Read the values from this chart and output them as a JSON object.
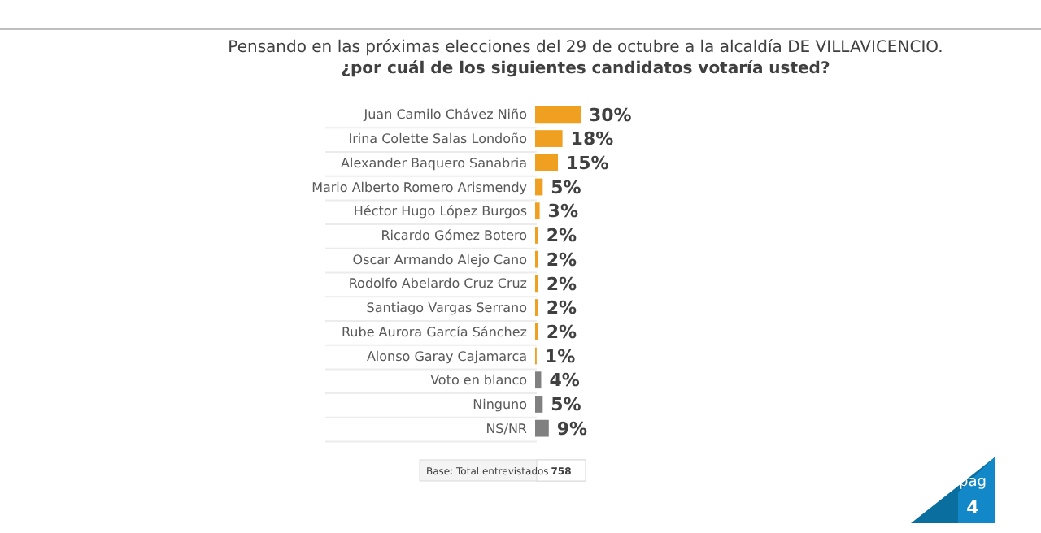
{
  "chart_data": {
    "type": "bar",
    "orientation": "horizontal",
    "title": "Pensando en las próximas elecciones del 29 de octubre a la alcaldía  DE VILLAVICENCIO.",
    "subtitle": "¿por cuál de los siguientes candidatos votaría usted?",
    "categories": [
      "Juan Camilo Chávez Niño",
      "Irina Colette Salas Londoño",
      "Alexander Baquero Sanabria",
      "Mario Alberto Romero Arismendy",
      "Héctor Hugo López Burgos",
      "Ricardo Gómez Botero",
      "Oscar Armando Alejo Cano",
      "Rodolfo Abelardo Cruz Cruz",
      "Santiago Vargas Serrano",
      "Rube Aurora García Sánchez",
      "Alonso Garay Cajamarca",
      "Voto en blanco",
      "Ninguno",
      "NS/NR"
    ],
    "values": [
      30,
      18,
      15,
      5,
      3,
      2,
      2,
      2,
      2,
      2,
      1,
      4,
      5,
      9
    ],
    "colors": [
      "#f0a020",
      "#f0a020",
      "#f0a020",
      "#f0a020",
      "#f0a020",
      "#f0a020",
      "#f0a020",
      "#f0a020",
      "#f0a020",
      "#f0a020",
      "#f0a020",
      "#808080",
      "#808080",
      "#808080"
    ],
    "value_labels": [
      "30%",
      "18%",
      "15%",
      "5%",
      "3%",
      "2%",
      "2%",
      "2%",
      "2%",
      "2%",
      "1%",
      "4%",
      "5%",
      "9%"
    ],
    "annotations": [
      "Base: Total entrevistados",
      "758",
      "pag",
      "4"
    ]
  }
}
